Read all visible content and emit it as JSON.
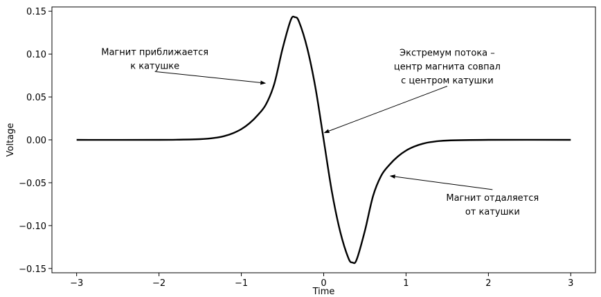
{
  "chart_data": {
    "type": "line",
    "title": "",
    "xlabel": "Time",
    "ylabel": "Voltage",
    "xlim": [
      -3.3,
      3.3
    ],
    "ylim": [
      -0.155,
      0.155
    ],
    "xticks": [
      -3,
      -2,
      -1,
      0,
      1,
      2,
      3
    ],
    "xtick_labels": [
      "−3",
      "−2",
      "−1",
      "0",
      "1",
      "2",
      "3"
    ],
    "yticks": [
      -0.15,
      -0.1,
      -0.05,
      0.0,
      0.05,
      0.1,
      0.15
    ],
    "ytick_labels": [
      "−0.15",
      "−0.10",
      "−0.05",
      "0.00",
      "0.05",
      "0.10",
      "0.15"
    ],
    "grid": false,
    "legend": "none",
    "line_color": "#000000",
    "series": [
      {
        "x": [
          -3.0,
          -2.0,
          -1.5,
          -1.3,
          -1.2,
          -1.1,
          -1.0,
          -0.9,
          -0.8,
          -0.7,
          -0.6,
          -0.5,
          -0.4,
          -0.35,
          -0.3,
          -0.2,
          -0.1,
          0.0,
          0.1,
          0.2,
          0.3,
          0.35,
          0.4,
          0.5,
          0.6,
          0.7,
          0.8,
          0.9,
          1.0,
          1.1,
          1.2,
          1.3,
          1.5,
          2.0,
          3.0
        ],
        "y": [
          0.0,
          0.0,
          0.0008,
          0.0026,
          0.0046,
          0.0078,
          0.0125,
          0.0194,
          0.0289,
          0.0415,
          0.0653,
          0.1061,
          0.1397,
          0.143,
          0.1379,
          0.1069,
          0.0607,
          0.0,
          -0.0607,
          -0.1069,
          -0.1379,
          -0.143,
          -0.1397,
          -0.1061,
          -0.0653,
          -0.0415,
          -0.0289,
          -0.0194,
          -0.0125,
          -0.0078,
          -0.0046,
          -0.0026,
          -0.0008,
          0.0,
          0.0
        ]
      }
    ],
    "annotations": [
      {
        "lines": [
          "Магнит приближается",
          "к катушке"
        ],
        "text_at": [
          -2.05,
          0.095
        ],
        "point": [
          -0.7,
          0.066
        ]
      },
      {
        "lines": [
          "Экстремум потока –",
          "центр магнита совпал",
          "с центром катушки"
        ],
        "text_at": [
          1.5,
          0.086
        ],
        "point": [
          0.0,
          0.008
        ]
      },
      {
        "lines": [
          "Магнит отдаляется",
          "от катушки"
        ],
        "text_at": [
          2.05,
          -0.075
        ],
        "point": [
          0.8,
          -0.042
        ]
      }
    ]
  }
}
